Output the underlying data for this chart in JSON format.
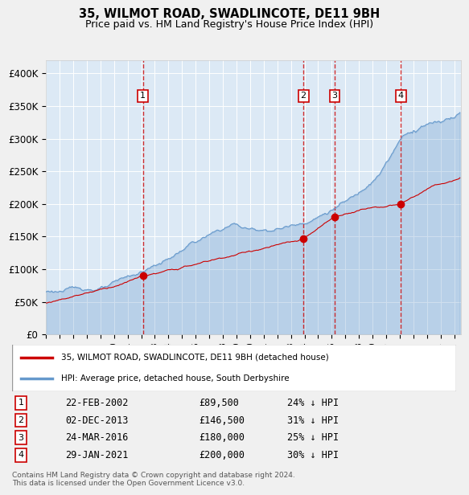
{
  "title1": "35, WILMOT ROAD, SWADLINCOTE, DE11 9BH",
  "title2": "Price paid vs. HM Land Registry's House Price Index (HPI)",
  "legend1": "35, WILMOT ROAD, SWADLINCOTE, DE11 9BH (detached house)",
  "legend2": "HPI: Average price, detached house, South Derbyshire",
  "footer": "Contains HM Land Registry data © Crown copyright and database right 2024.\nThis data is licensed under the Open Government Licence v3.0.",
  "transactions": [
    {
      "num": 1,
      "date": "22-FEB-2002",
      "price": 89500,
      "pct": "24% ↓ HPI",
      "date_val": 2002.13
    },
    {
      "num": 2,
      "date": "02-DEC-2013",
      "price": 146500,
      "pct": "31% ↓ HPI",
      "date_val": 2013.92
    },
    {
      "num": 3,
      "date": "24-MAR-2016",
      "price": 180000,
      "pct": "25% ↓ HPI",
      "date_val": 2016.22
    },
    {
      "num": 4,
      "date": "29-JAN-2021",
      "price": 200000,
      "pct": "30% ↓ HPI",
      "date_val": 2021.08
    }
  ],
  "hpi_color": "#6699cc",
  "price_color": "#cc0000",
  "bg_color": "#dce9f5",
  "plot_bg": "#dce9f5",
  "grid_color": "#ffffff",
  "dashed_color": "#cc0000",
  "yticks": [
    0,
    50000,
    100000,
    150000,
    200000,
    250000,
    300000,
    350000,
    400000
  ],
  "ylabels": [
    "£0",
    "£50K",
    "£100K",
    "£150K",
    "£200K",
    "£250K",
    "£300K",
    "£350K",
    "£400K"
  ],
  "ymax": 420000,
  "xmin": 1995.0,
  "xmax": 2025.5
}
